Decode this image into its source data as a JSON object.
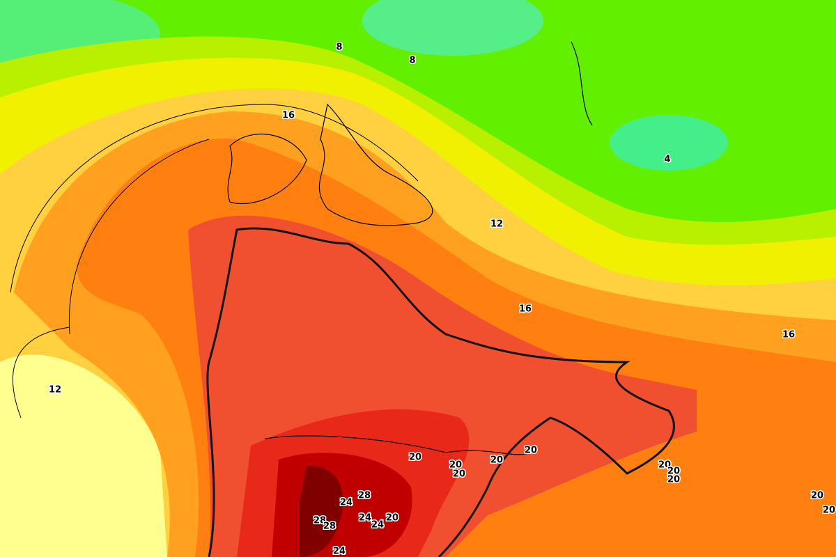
{
  "contour_labels": [
    8,
    8,
    16,
    4,
    12,
    16,
    16,
    12,
    20,
    20,
    20,
    20,
    20,
    20,
    20,
    20,
    20,
    20,
    24,
    28,
    28,
    28,
    24,
    24,
    20,
    24
  ]
}
